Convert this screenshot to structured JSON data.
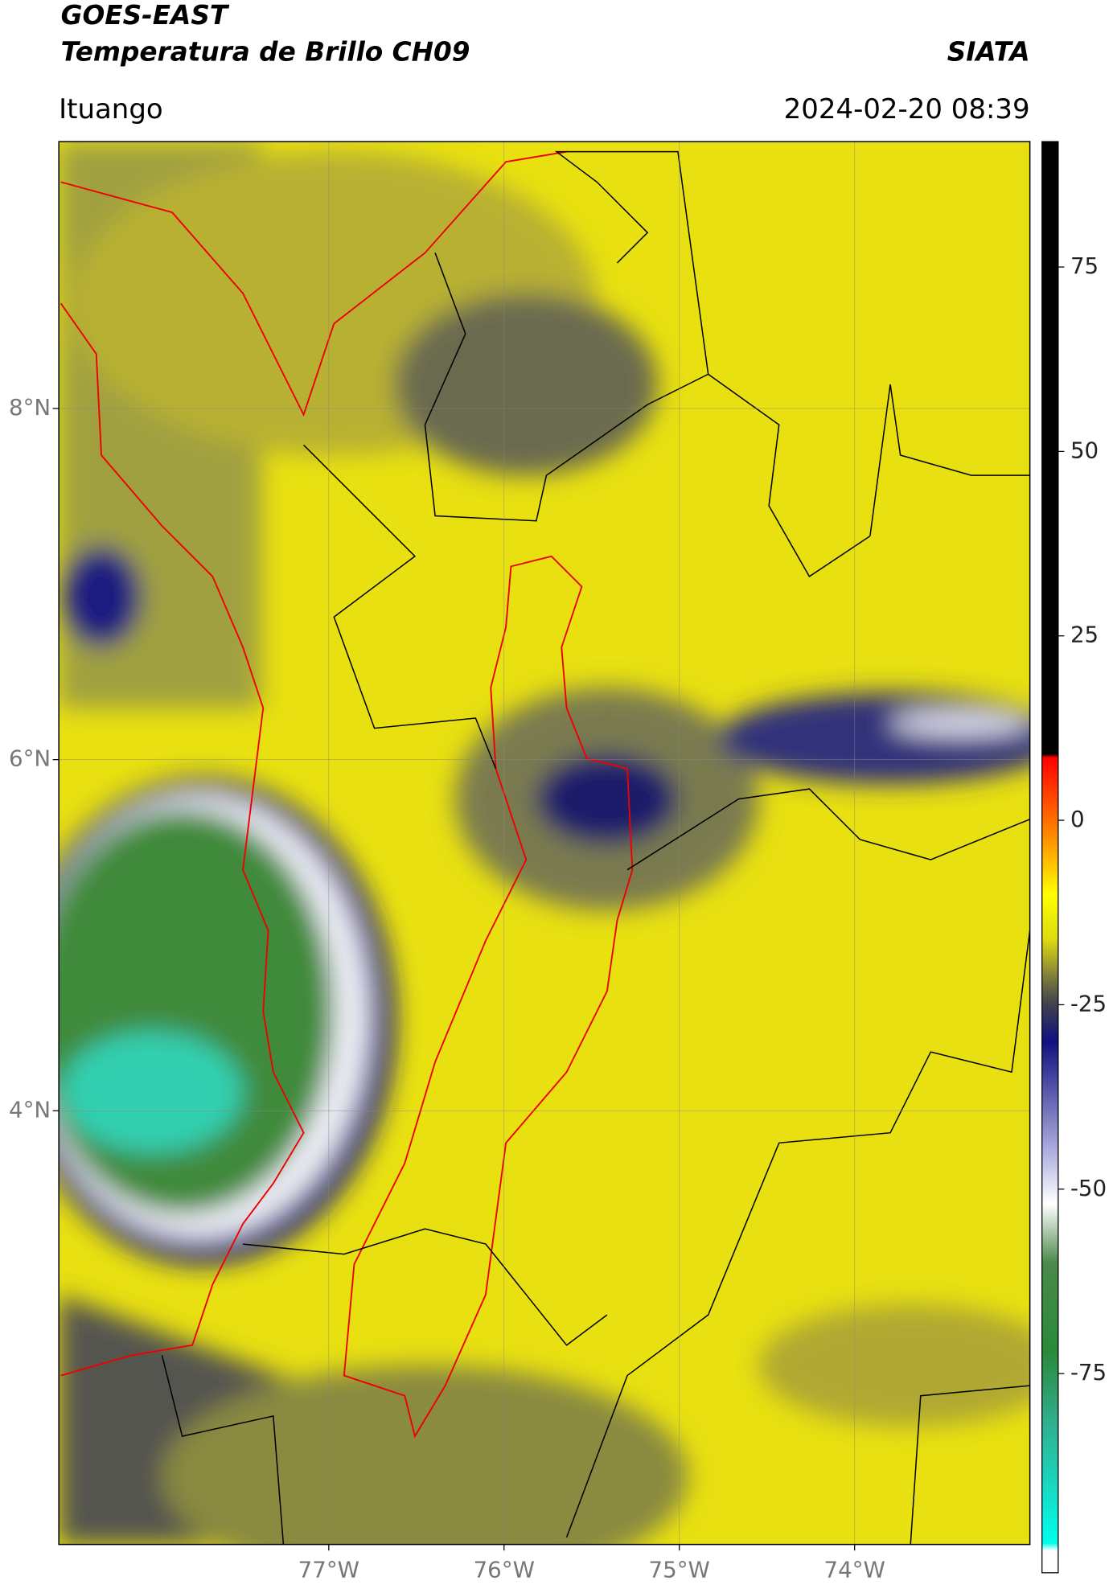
{
  "chart_data": {
    "type": "map",
    "title": "GOES-EAST",
    "subtitle": "Temperatura de Brillo CH09",
    "source": "SIATA",
    "location": "Ituango",
    "datetime": "2024-02-20 08:39",
    "xlim": [
      -78.54,
      -73.0
    ],
    "ylim": [
      1.53,
      9.52
    ],
    "xticks": [
      {
        "value": -77,
        "label": "77°W"
      },
      {
        "value": -76,
        "label": "76°W"
      },
      {
        "value": -75,
        "label": "75°W"
      },
      {
        "value": -74,
        "label": "74°W"
      }
    ],
    "yticks": [
      {
        "value": 8,
        "label": "8°N"
      },
      {
        "value": 6,
        "label": "6°N"
      },
      {
        "value": 4,
        "label": "4°N"
      }
    ],
    "grid": true,
    "colorbar": {
      "clim": [
        -102,
        92
      ],
      "ticks": [
        75,
        50,
        25,
        0,
        -25,
        -50,
        -75
      ],
      "colormap": [
        {
          "value": 92,
          "color": "#000000"
        },
        {
          "value": 9,
          "color": "#000000"
        },
        {
          "value": 8.5,
          "color": "#ff0000"
        },
        {
          "value": -2,
          "color": "#ff8800"
        },
        {
          "value": -10,
          "color": "#ffff00"
        },
        {
          "value": -16,
          "color": "#e0dc10"
        },
        {
          "value": -22,
          "color": "#707040"
        },
        {
          "value": -25,
          "color": "#404050"
        },
        {
          "value": -30,
          "color": "#101080"
        },
        {
          "value": -45,
          "color": "#b0b0e0"
        },
        {
          "value": -52,
          "color": "#ffffff"
        },
        {
          "value": -60,
          "color": "#4a8a4a"
        },
        {
          "value": -72,
          "color": "#2a8a3a"
        },
        {
          "value": -82,
          "color": "#30b090"
        },
        {
          "value": -98,
          "color": "#00ffee"
        },
        {
          "value": -99,
          "color": "#ffffff"
        },
        {
          "value": -102,
          "color": "#ffffff"
        }
      ]
    }
  }
}
